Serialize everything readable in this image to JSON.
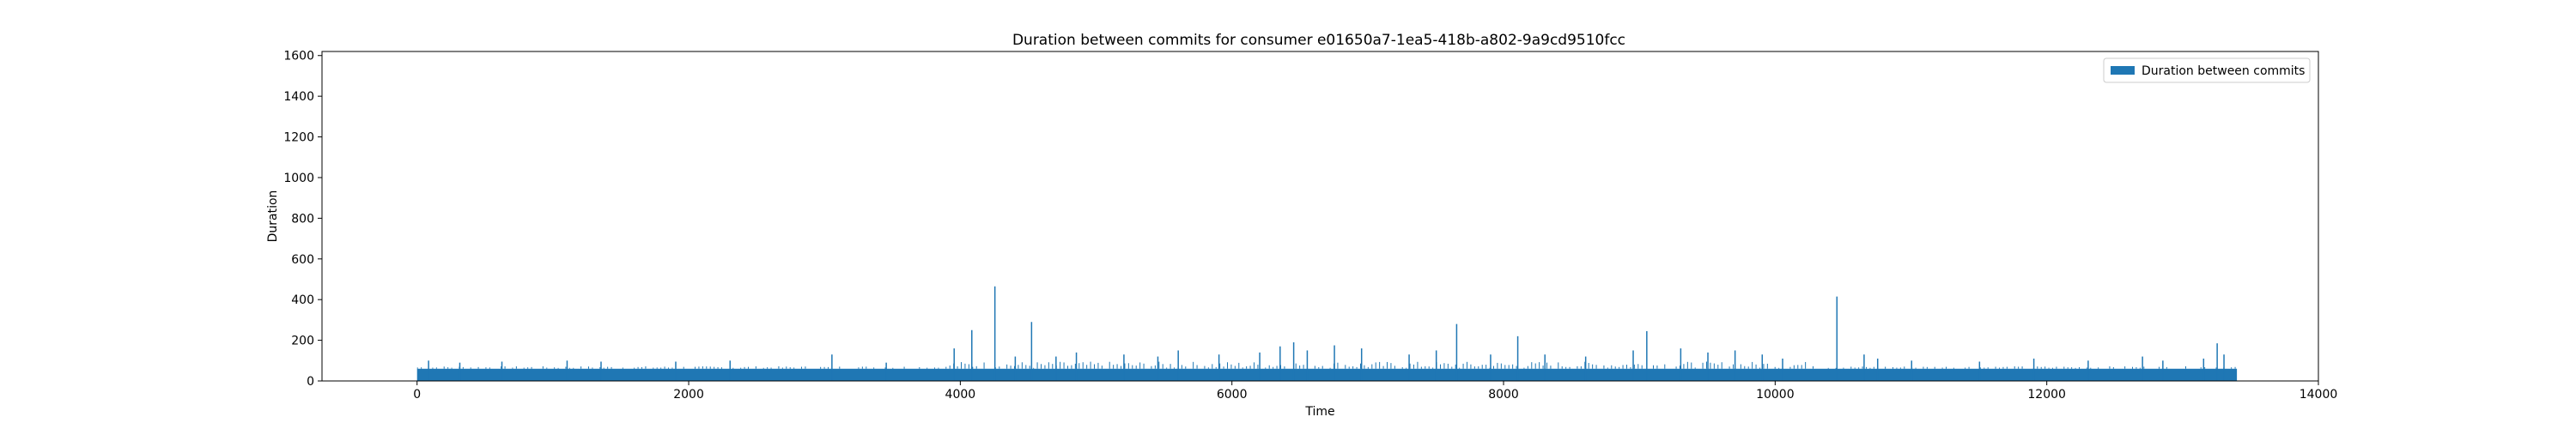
{
  "chart_data": {
    "type": "bar",
    "title": "Duration between commits for consumer e01650a7-1ea5-418b-a802-9a9cd9510fcc",
    "xlabel": "Time",
    "ylabel": "Duration",
    "xlim": [
      -700,
      14000
    ],
    "ylim": [
      0,
      1620
    ],
    "xticks": [
      0,
      2000,
      4000,
      6000,
      8000,
      10000,
      12000,
      14000
    ],
    "yticks": [
      0,
      200,
      400,
      600,
      800,
      1000,
      1200,
      1400,
      1600
    ],
    "grid": false,
    "legend_position": "top-right",
    "color": "#1f77b4",
    "x_range": [
      0,
      13400
    ],
    "baseline": 60,
    "series": [
      {
        "name": "Duration between commits",
        "color": "#1f77b4",
        "spikes": [
          {
            "x": 80,
            "y": 100
          },
          {
            "x": 310,
            "y": 90
          },
          {
            "x": 620,
            "y": 95
          },
          {
            "x": 1100,
            "y": 100
          },
          {
            "x": 1350,
            "y": 95
          },
          {
            "x": 1900,
            "y": 95
          },
          {
            "x": 2300,
            "y": 100
          },
          {
            "x": 3050,
            "y": 130
          },
          {
            "x": 3450,
            "y": 90
          },
          {
            "x": 3950,
            "y": 160
          },
          {
            "x": 4080,
            "y": 250
          },
          {
            "x": 4250,
            "y": 465
          },
          {
            "x": 4400,
            "y": 120
          },
          {
            "x": 4520,
            "y": 290
          },
          {
            "x": 4700,
            "y": 120
          },
          {
            "x": 4850,
            "y": 140
          },
          {
            "x": 5200,
            "y": 130
          },
          {
            "x": 5450,
            "y": 120
          },
          {
            "x": 5600,
            "y": 150
          },
          {
            "x": 5900,
            "y": 130
          },
          {
            "x": 6200,
            "y": 140
          },
          {
            "x": 6350,
            "y": 170
          },
          {
            "x": 6450,
            "y": 190
          },
          {
            "x": 6550,
            "y": 150
          },
          {
            "x": 6750,
            "y": 175
          },
          {
            "x": 6950,
            "y": 160
          },
          {
            "x": 7300,
            "y": 130
          },
          {
            "x": 7500,
            "y": 150
          },
          {
            "x": 7650,
            "y": 280
          },
          {
            "x": 7900,
            "y": 130
          },
          {
            "x": 8100,
            "y": 220
          },
          {
            "x": 8300,
            "y": 130
          },
          {
            "x": 8600,
            "y": 120
          },
          {
            "x": 8950,
            "y": 150
          },
          {
            "x": 9050,
            "y": 245
          },
          {
            "x": 9300,
            "y": 160
          },
          {
            "x": 9500,
            "y": 140
          },
          {
            "x": 9700,
            "y": 150
          },
          {
            "x": 9900,
            "y": 130
          },
          {
            "x": 10050,
            "y": 110
          },
          {
            "x": 10450,
            "y": 415
          },
          {
            "x": 10650,
            "y": 130
          },
          {
            "x": 10750,
            "y": 110
          },
          {
            "x": 11000,
            "y": 100
          },
          {
            "x": 11500,
            "y": 95
          },
          {
            "x": 11900,
            "y": 110
          },
          {
            "x": 12300,
            "y": 100
          },
          {
            "x": 12700,
            "y": 120
          },
          {
            "x": 12850,
            "y": 100
          },
          {
            "x": 13150,
            "y": 110
          },
          {
            "x": 13250,
            "y": 185
          },
          {
            "x": 13300,
            "y": 130
          }
        ]
      }
    ]
  }
}
